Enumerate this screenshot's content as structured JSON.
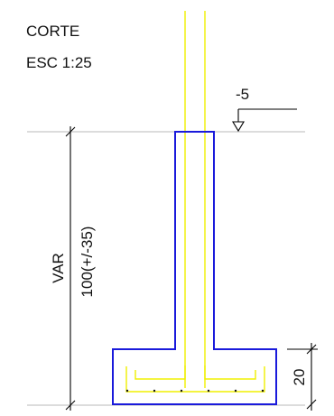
{
  "title": {
    "line1": "CORTE",
    "line2": "ESC 1:25"
  },
  "level_marker": {
    "value": "-5"
  },
  "dimensions": {
    "left_label": "VAR",
    "left_value": "100(+/-35)",
    "right_value": "20"
  },
  "colors": {
    "footing_outline": "#1a1adb",
    "reinforcement": "#f0f000",
    "dimension_line": "#000000",
    "reference_line": "#c8c8c8"
  }
}
